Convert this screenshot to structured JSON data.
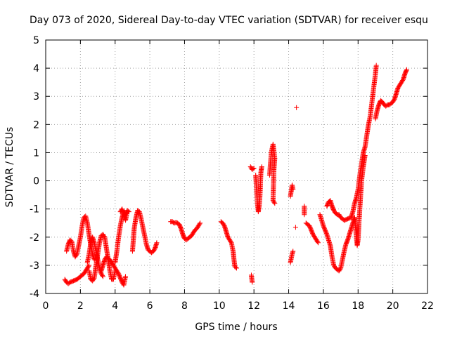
{
  "chart_data": {
    "type": "scatter",
    "title": "Day 073 of 2020, Sidereal Day-to-day VTEC variation (SDTVAR) for receiver esqu",
    "xlabel": "GPS time / hours",
    "ylabel": "SDTVAR / TECUs",
    "xlim": [
      0,
      22
    ],
    "ylim": [
      -4,
      5
    ],
    "xticks": [
      "0",
      "2",
      "4",
      "6",
      "8",
      "10",
      "12",
      "14",
      "16",
      "18",
      "20",
      "22"
    ],
    "yticks": [
      "-4",
      "-3",
      "-2",
      "-1",
      "0",
      "1",
      "2",
      "3",
      "4",
      "5"
    ],
    "grid": true,
    "marker": "+",
    "color": "#ff0000",
    "series": [
      {
        "name": "SDTVAR",
        "segments": [
          [
            [
              1.1,
              -3.5
            ],
            [
              1.2,
              -3.6
            ],
            [
              1.3,
              -3.65
            ],
            [
              1.4,
              -3.6
            ],
            [
              1.6,
              -3.55
            ],
            [
              1.8,
              -3.5
            ],
            [
              2.0,
              -3.4
            ],
            [
              2.2,
              -3.3
            ],
            [
              2.4,
              -3.1
            ],
            [
              2.5,
              -3.0
            ]
          ],
          [
            [
              1.2,
              -2.5
            ],
            [
              1.3,
              -2.25
            ],
            [
              1.4,
              -2.1
            ],
            [
              1.5,
              -2.15
            ],
            [
              1.6,
              -2.5
            ],
            [
              1.7,
              -2.7
            ],
            [
              1.8,
              -2.6
            ],
            [
              1.9,
              -2.3
            ],
            [
              2.0,
              -2.0
            ],
            [
              2.1,
              -1.6
            ],
            [
              2.2,
              -1.3
            ],
            [
              2.3,
              -1.25
            ],
            [
              2.4,
              -1.5
            ],
            [
              2.5,
              -1.9
            ],
            [
              2.6,
              -2.3
            ],
            [
              2.7,
              -2.6
            ],
            [
              2.8,
              -2.8
            ]
          ],
          [
            [
              2.4,
              -2.9
            ],
            [
              2.5,
              -2.6
            ],
            [
              2.6,
              -2.2
            ],
            [
              2.7,
              -2.0
            ],
            [
              2.8,
              -2.2
            ],
            [
              2.9,
              -2.5
            ],
            [
              3.0,
              -2.8
            ],
            [
              3.1,
              -3.1
            ],
            [
              3.2,
              -3.3
            ],
            [
              3.3,
              -3.4
            ]
          ],
          [
            [
              2.5,
              -3.2
            ],
            [
              2.6,
              -3.5
            ],
            [
              2.7,
              -3.55
            ],
            [
              2.8,
              -3.45
            ],
            [
              2.9,
              -3.0
            ],
            [
              3.0,
              -2.6
            ],
            [
              3.1,
              -2.2
            ],
            [
              3.2,
              -1.95
            ],
            [
              3.3,
              -1.9
            ],
            [
              3.4,
              -2.0
            ],
            [
              3.5,
              -2.4
            ],
            [
              3.6,
              -2.8
            ],
            [
              3.7,
              -3.2
            ],
            [
              3.8,
              -3.5
            ],
            [
              3.9,
              -3.5
            ],
            [
              4.0,
              -3.2
            ]
          ],
          [
            [
              3.2,
              -3.2
            ],
            [
              3.3,
              -3.0
            ],
            [
              3.4,
              -2.8
            ],
            [
              3.5,
              -2.7
            ],
            [
              3.6,
              -2.75
            ],
            [
              3.7,
              -2.8
            ],
            [
              3.8,
              -2.9
            ],
            [
              3.9,
              -3.0
            ],
            [
              4.0,
              -3.1
            ],
            [
              4.2,
              -3.3
            ],
            [
              4.4,
              -3.6
            ],
            [
              4.5,
              -3.7
            ],
            [
              4.6,
              -3.4
            ]
          ],
          [
            [
              4.0,
              -2.9
            ],
            [
              4.1,
              -2.5
            ],
            [
              4.2,
              -2.0
            ],
            [
              4.3,
              -1.6
            ],
            [
              4.4,
              -1.3
            ],
            [
              4.5,
              -1.1
            ],
            [
              4.6,
              -1.2
            ],
            [
              4.7,
              -1.05
            ],
            [
              4.8,
              -1.1
            ]
          ],
          [
            [
              4.3,
              -1.1
            ],
            [
              4.4,
              -1.0
            ],
            [
              4.5,
              -1.2
            ],
            [
              4.6,
              -1.4
            ],
            [
              4.7,
              -1.1
            ]
          ],
          [
            [
              5.0,
              -2.5
            ],
            [
              5.05,
              -2.1
            ],
            [
              5.1,
              -1.7
            ],
            [
              5.2,
              -1.3
            ],
            [
              5.3,
              -1.05
            ],
            [
              5.4,
              -1.1
            ],
            [
              5.5,
              -1.35
            ],
            [
              5.6,
              -1.65
            ],
            [
              5.7,
              -1.95
            ],
            [
              5.8,
              -2.25
            ],
            [
              5.9,
              -2.45
            ],
            [
              6.0,
              -2.5
            ],
            [
              6.1,
              -2.55
            ],
            [
              6.2,
              -2.5
            ],
            [
              6.3,
              -2.4
            ],
            [
              6.4,
              -2.2
            ]
          ],
          [
            [
              7.2,
              -1.45
            ],
            [
              7.3,
              -1.45
            ],
            [
              7.4,
              -1.5
            ],
            [
              7.5,
              -1.48
            ],
            [
              7.6,
              -1.5
            ],
            [
              7.7,
              -1.55
            ],
            [
              7.8,
              -1.7
            ],
            [
              7.9,
              -1.9
            ],
            [
              8.0,
              -2.05
            ],
            [
              8.1,
              -2.1
            ],
            [
              8.2,
              -2.05
            ],
            [
              8.3,
              -2.0
            ],
            [
              8.4,
              -1.95
            ],
            [
              8.5,
              -1.85
            ],
            [
              8.6,
              -1.75
            ],
            [
              8.7,
              -1.7
            ],
            [
              8.8,
              -1.6
            ],
            [
              8.9,
              -1.5
            ]
          ],
          [
            [
              10.1,
              -1.45
            ],
            [
              10.2,
              -1.5
            ],
            [
              10.3,
              -1.6
            ],
            [
              10.4,
              -1.8
            ],
            [
              10.5,
              -2.0
            ],
            [
              10.6,
              -2.1
            ],
            [
              10.7,
              -2.2
            ],
            [
              10.8,
              -2.5
            ],
            [
              10.85,
              -2.8
            ],
            [
              10.9,
              -3.05
            ],
            [
              11.0,
              -3.1
            ]
          ],
          [
            [
              11.85,
              -3.35
            ],
            [
              11.9,
              -3.6
            ]
          ],
          [
            [
              11.8,
              0.5
            ],
            [
              11.9,
              0.4
            ],
            [
              12.0,
              0.45
            ]
          ],
          [
            [
              12.1,
              0.2
            ],
            [
              12.15,
              -0.3
            ],
            [
              12.2,
              -0.8
            ],
            [
              12.25,
              -1.1
            ],
            [
              12.3,
              -0.9
            ],
            [
              12.35,
              -0.5
            ],
            [
              12.4,
              0.3
            ],
            [
              12.45,
              0.5
            ]
          ],
          [
            [
              12.9,
              0.2
            ],
            [
              13.0,
              1.0
            ],
            [
              13.1,
              1.3
            ],
            [
              13.2,
              0.8
            ],
            [
              13.15,
              0.4
            ],
            [
              13.1,
              -0.7
            ],
            [
              13.2,
              -0.8
            ]
          ],
          [
            [
              14.1,
              -2.9
            ],
            [
              14.2,
              -2.6
            ],
            [
              14.25,
              -2.5
            ]
          ],
          [
            [
              14.1,
              -0.55
            ],
            [
              14.2,
              -0.15
            ],
            [
              14.25,
              -0.3
            ]
          ],
          [
            [
              14.4,
              -1.65
            ]
          ],
          [
            [
              14.45,
              2.6
            ]
          ],
          [
            [
              14.9,
              -0.9
            ],
            [
              14.9,
              -1.2
            ]
          ],
          [
            [
              15.0,
              -1.5
            ],
            [
              15.2,
              -1.6
            ],
            [
              15.4,
              -1.9
            ],
            [
              15.6,
              -2.1
            ],
            [
              15.7,
              -2.2
            ]
          ],
          [
            [
              15.8,
              -1.2
            ],
            [
              16.0,
              -1.6
            ],
            [
              16.2,
              -1.9
            ],
            [
              16.4,
              -2.3
            ],
            [
              16.5,
              -2.7
            ],
            [
              16.6,
              -3.0
            ],
            [
              16.7,
              -3.1
            ],
            [
              16.8,
              -3.15
            ],
            [
              16.9,
              -3.2
            ],
            [
              17.0,
              -3.1
            ],
            [
              17.1,
              -2.8
            ],
            [
              17.2,
              -2.5
            ],
            [
              17.3,
              -2.25
            ],
            [
              17.4,
              -2.1
            ],
            [
              17.5,
              -1.9
            ],
            [
              17.6,
              -1.7
            ],
            [
              17.7,
              -1.5
            ],
            [
              17.8,
              -1.3
            ],
            [
              17.85,
              -1.6
            ],
            [
              17.9,
              -2.0
            ],
            [
              17.95,
              -2.3
            ],
            [
              18.0,
              -2.1
            ],
            [
              18.05,
              -1.5
            ],
            [
              18.1,
              -1.0
            ],
            [
              18.15,
              -0.5
            ],
            [
              18.2,
              0.0
            ],
            [
              18.3,
              0.5
            ],
            [
              18.4,
              0.9
            ]
          ],
          [
            [
              16.2,
              -0.9
            ],
            [
              16.3,
              -0.75
            ],
            [
              16.4,
              -0.7
            ],
            [
              16.5,
              -0.9
            ],
            [
              16.6,
              -1.05
            ],
            [
              16.7,
              -1.15
            ],
            [
              16.8,
              -1.2
            ],
            [
              16.9,
              -1.2
            ],
            [
              17.0,
              -1.3
            ],
            [
              17.2,
              -1.4
            ],
            [
              17.4,
              -1.35
            ],
            [
              17.6,
              -1.3
            ],
            [
              17.7,
              -1.1
            ],
            [
              17.8,
              -0.8
            ],
            [
              17.9,
              -0.6
            ],
            [
              18.0,
              -0.3
            ],
            [
              18.1,
              0.2
            ],
            [
              18.2,
              0.6
            ],
            [
              18.3,
              1.0
            ],
            [
              18.4,
              1.2
            ],
            [
              18.5,
              1.6
            ],
            [
              18.6,
              2.0
            ],
            [
              18.7,
              2.3
            ],
            [
              18.8,
              2.8
            ],
            [
              18.9,
              3.3
            ],
            [
              19.0,
              3.8
            ],
            [
              19.05,
              4.1
            ]
          ],
          [
            [
              19.0,
              2.2
            ],
            [
              19.1,
              2.5
            ],
            [
              19.2,
              2.7
            ],
            [
              19.3,
              2.85
            ],
            [
              19.4,
              2.8
            ],
            [
              19.5,
              2.7
            ],
            [
              19.6,
              2.65
            ],
            [
              19.7,
              2.7
            ],
            [
              19.8,
              2.7
            ],
            [
              19.9,
              2.75
            ],
            [
              20.0,
              2.8
            ],
            [
              20.1,
              2.9
            ],
            [
              20.2,
              3.1
            ],
            [
              20.3,
              3.3
            ],
            [
              20.4,
              3.4
            ],
            [
              20.5,
              3.5
            ],
            [
              20.6,
              3.6
            ],
            [
              20.7,
              3.8
            ],
            [
              20.8,
              3.95
            ]
          ]
        ]
      }
    ]
  }
}
